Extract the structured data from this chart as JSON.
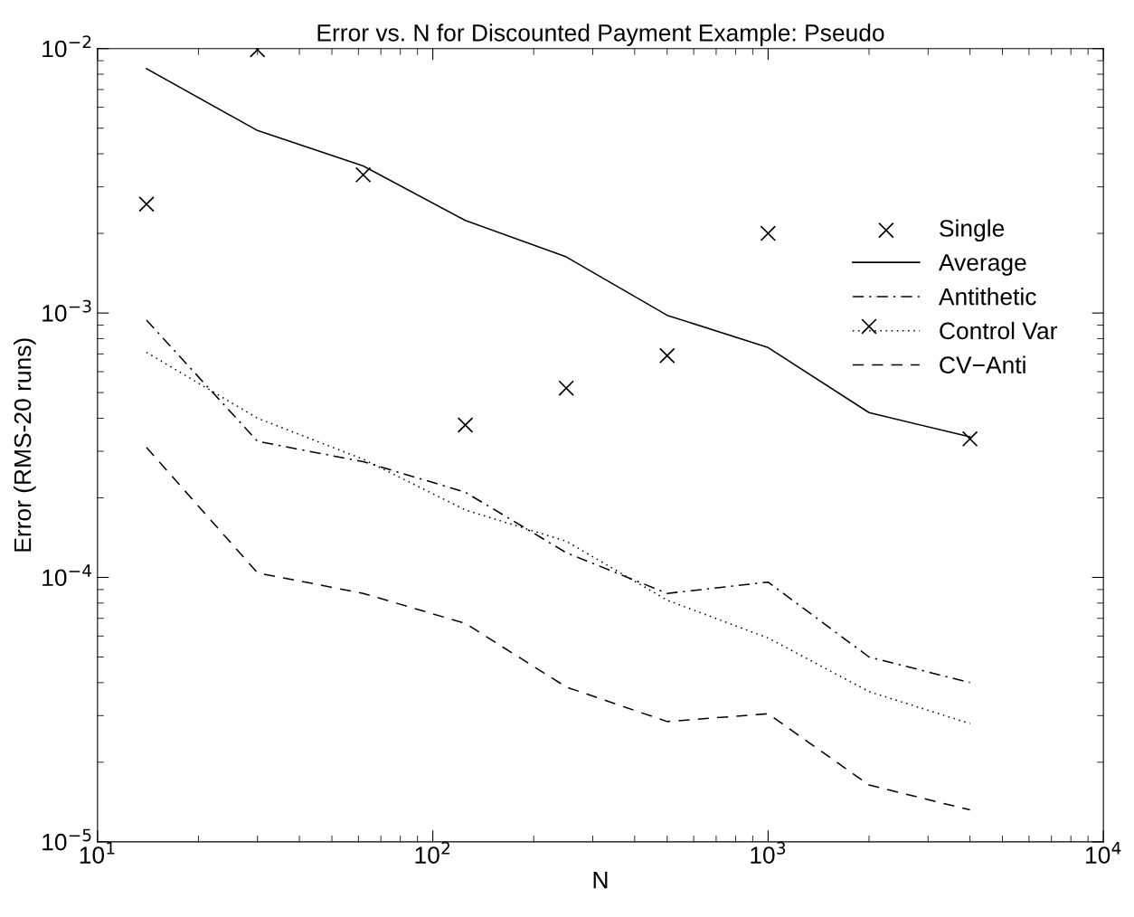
{
  "chart_data": {
    "type": "line",
    "title": "Error vs. N for Discounted Payment Example: Pseudo",
    "xlabel": "N",
    "ylabel": "Error (RMS-20 runs)",
    "log": "xy",
    "grid": false,
    "legend": "top right",
    "x": [
      14,
      30,
      62,
      125,
      250,
      500,
      1000,
      2000,
      4000
    ],
    "xlim": [
      10,
      10000
    ],
    "ylim": [
      1e-05,
      0.01
    ],
    "xticks": [
      {
        "value": 10,
        "label": "10$^{1}$"
      },
      {
        "value": 100,
        "label": "10$^{2}$"
      },
      {
        "value": 1000,
        "label": "10$^{3}$"
      },
      {
        "value": 10000,
        "label": "10$^{4}$"
      }
    ],
    "yticks": [
      {
        "value": 1e-05,
        "label": "10$^{−5}$"
      },
      {
        "value": 0.0001,
        "label": "10$^{−4}$"
      },
      {
        "value": 0.001,
        "label": "10$^{−3}$"
      },
      {
        "value": 0.01,
        "label": "10$^{−2}$"
      }
    ],
    "series": [
      {
        "name": "Single",
        "type": "scatter",
        "marker": "cross",
        "color": "#000000",
        "values": [
          0.00258,
          0.0099,
          0.00333,
          0.000377,
          0.00052,
          0.00069,
          0.002,
          0.00089,
          0.000334
        ]
      },
      {
        "name": "Average",
        "line_style": "solid",
        "color": "#000000",
        "values": [
          0.0084,
          0.0049,
          0.0036,
          0.00224,
          0.00163,
          0.00098,
          0.00074,
          0.00042,
          0.00034
        ]
      },
      {
        "name": "Antithetic",
        "line_style": "dashdot",
        "color": "#000000",
        "values": [
          0.00094,
          0.000327,
          0.000274,
          0.00021,
          0.000124,
          8.7e-05,
          9.6e-05,
          5e-05,
          4e-05
        ]
      },
      {
        "name": "Control Var",
        "line_style": "dotted",
        "color": "#000000",
        "values": [
          0.00071,
          0.0004,
          0.00028,
          0.00018,
          0.000137,
          8.2e-05,
          5.9e-05,
          3.7e-05,
          2.8e-05
        ]
      },
      {
        "name": "CV−Anti",
        "line_style": "dashed",
        "color": "#000000",
        "values": [
          0.00031,
          0.000104,
          8.7e-05,
          6.7e-05,
          3.85e-05,
          2.85e-05,
          3.05e-05,
          1.64e-05,
          1.32e-05
        ]
      }
    ]
  }
}
